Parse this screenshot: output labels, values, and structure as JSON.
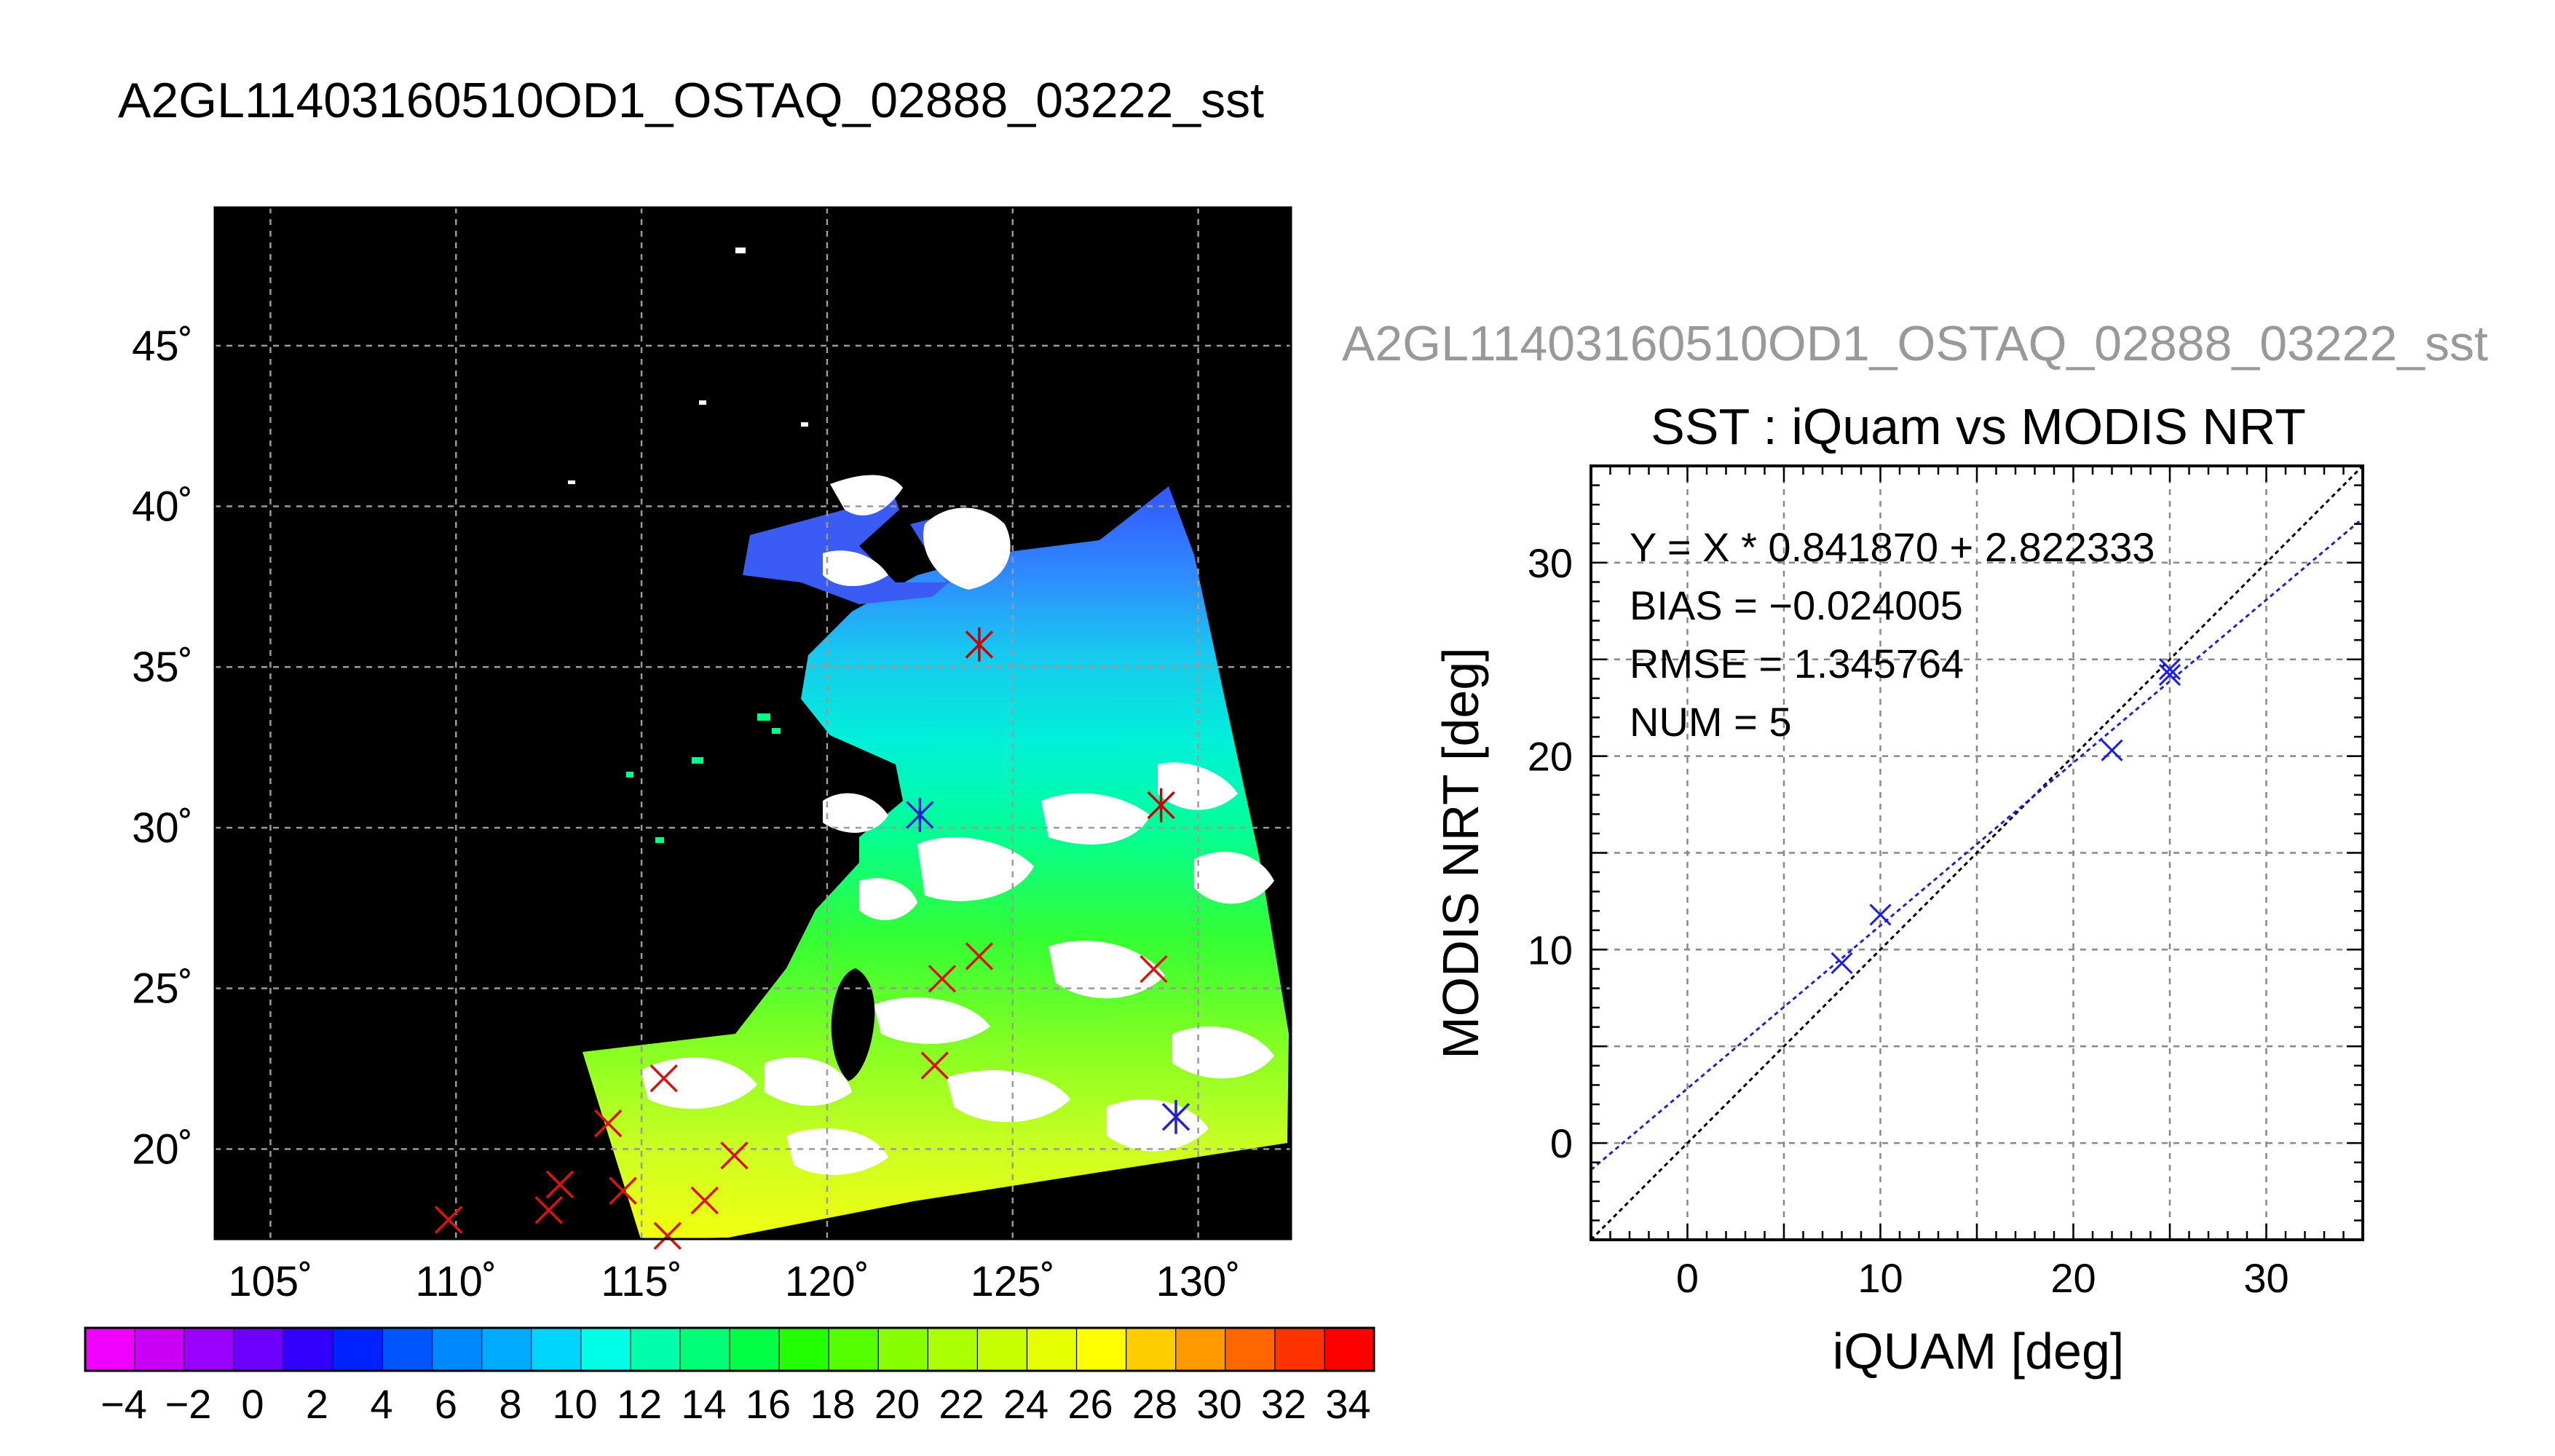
{
  "main_title": "A2GL11403160510OD1_OSTAQ_02888_03222_sst",
  "map": {
    "lon_ticks": [
      "105˚",
      "110˚",
      "115˚",
      "120˚",
      "125˚",
      "130˚"
    ],
    "lat_ticks": [
      "20˚",
      "25˚",
      "30˚",
      "35˚",
      "40˚",
      "45˚"
    ],
    "lon_range": [
      103.5,
      132.5
    ],
    "lat_range": [
      17.2,
      49.3
    ],
    "colors": {
      "background": "#000000",
      "land_cloud": "#ffffff",
      "grid": "#9a9a9a"
    },
    "match_markers": [
      {
        "lon": 124.1,
        "lat": 35.7,
        "color": "#cc0000",
        "symbol": "asterisk"
      },
      {
        "lon": 122.5,
        "lat": 30.4,
        "color": "#2222cc",
        "symbol": "asterisk"
      },
      {
        "lon": 129.0,
        "lat": 30.7,
        "color": "#cc0000",
        "symbol": "asterisk"
      },
      {
        "lon": 129.4,
        "lat": 21.0,
        "color": "#2222cc",
        "symbol": "asterisk"
      },
      {
        "lon": 124.1,
        "lat": 26.0,
        "color": "#dd1111",
        "symbol": "x"
      },
      {
        "lon": 123.1,
        "lat": 25.3,
        "color": "#dd1111",
        "symbol": "x"
      },
      {
        "lon": 128.8,
        "lat": 25.6,
        "color": "#dd1111",
        "symbol": "x"
      },
      {
        "lon": 122.9,
        "lat": 22.6,
        "color": "#dd1111",
        "symbol": "x"
      },
      {
        "lon": 115.6,
        "lat": 22.2,
        "color": "#dd1111",
        "symbol": "x"
      },
      {
        "lon": 114.1,
        "lat": 20.8,
        "color": "#dd1111",
        "symbol": "x"
      },
      {
        "lon": 117.5,
        "lat": 19.8,
        "color": "#dd1111",
        "symbol": "x"
      },
      {
        "lon": 112.8,
        "lat": 18.9,
        "color": "#dd1111",
        "symbol": "x"
      },
      {
        "lon": 114.5,
        "lat": 18.7,
        "color": "#dd1111",
        "symbol": "x"
      },
      {
        "lon": 112.5,
        "lat": 18.1,
        "color": "#dd1111",
        "symbol": "x"
      },
      {
        "lon": 109.8,
        "lat": 17.8,
        "color": "#dd1111",
        "symbol": "x"
      },
      {
        "lon": 116.7,
        "lat": 18.4,
        "color": "#dd1111",
        "symbol": "x"
      },
      {
        "lon": 115.7,
        "lat": 17.3,
        "color": "#dd1111",
        "symbol": "x"
      }
    ]
  },
  "colorbar": {
    "labels": [
      "−4",
      "−2",
      "0",
      "2",
      "4",
      "6",
      "8",
      "10",
      "12",
      "14",
      "16",
      "18",
      "20",
      "22",
      "24",
      "26",
      "28",
      "30",
      "32",
      "34"
    ],
    "min": -5,
    "max": 35,
    "step": 2,
    "colors": [
      "#f000ff",
      "#c900f5",
      "#9a00ff",
      "#6e00ff",
      "#3300ff",
      "#0022ff",
      "#0055ff",
      "#0088ff",
      "#00aaff",
      "#00d5ff",
      "#00ffe6",
      "#00ffaa",
      "#00ff77",
      "#00ff44",
      "#22ff00",
      "#55ff00",
      "#88ff00",
      "#aaff00",
      "#c8ff00",
      "#e6ff00",
      "#ffff00",
      "#ffcc00",
      "#ff9900",
      "#ff6600",
      "#ff3300",
      "#ff0000"
    ]
  },
  "scatter_title_top": "A2GL11403160510OD1_OSTAQ_02888_03222_sst",
  "chart_data": {
    "type": "scatter",
    "title": "SST : iQuam vs MODIS NRT",
    "xlabel": "iQUAM [deg]",
    "ylabel": "MODIS NRT [deg]",
    "xlim": [
      -5,
      35
    ],
    "ylim": [
      -5,
      35
    ],
    "xticks": [
      "0",
      "10",
      "20",
      "30"
    ],
    "yticks": [
      "0",
      "10",
      "20",
      "30"
    ],
    "grid": true,
    "points": [
      {
        "x": 8.0,
        "y": 9.3
      },
      {
        "x": 10.0,
        "y": 11.8
      },
      {
        "x": 22.0,
        "y": 20.3
      },
      {
        "x": 25.0,
        "y": 24.5
      },
      {
        "x": 25.0,
        "y": 24.2
      }
    ],
    "fit": {
      "slope": 0.84187,
      "intercept": 2.822333
    },
    "annotations": [
      "Y = X * 0.841870 + 2.822333",
      "BIAS = −0.024005",
      "RMSE = 1.345764",
      "NUM = 5"
    ],
    "colors": {
      "points": "#1a1aff",
      "fit_line": "#2222cc",
      "identity_line": "#000000"
    }
  }
}
